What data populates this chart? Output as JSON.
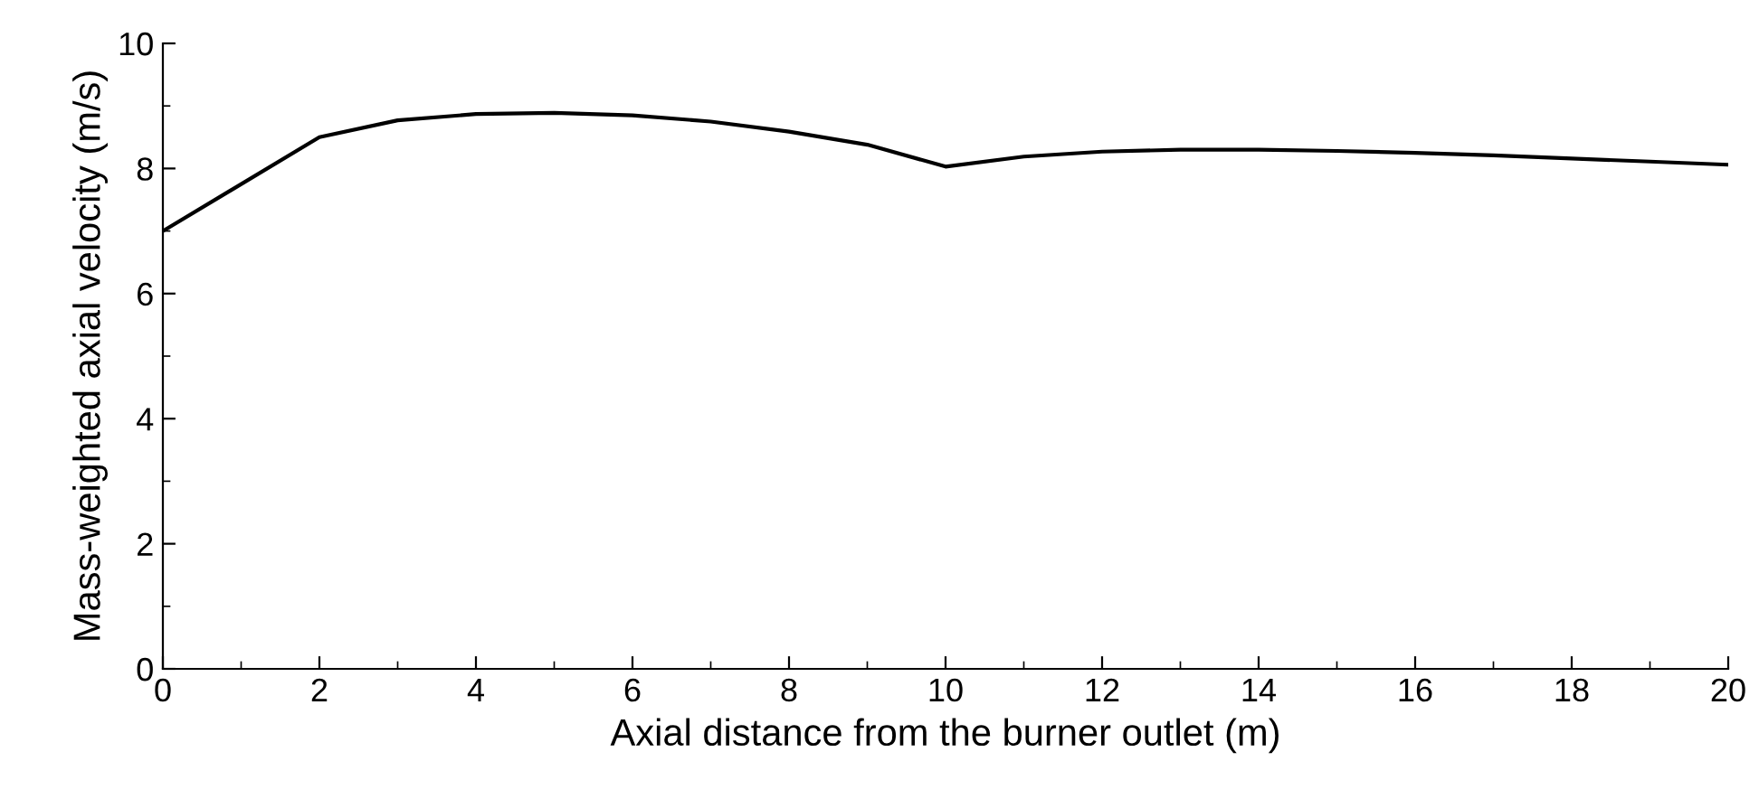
{
  "chart_data": {
    "type": "line",
    "xlabel": "Axial distance from the burner outlet (m)",
    "ylabel": "Mass-weighted axial velocity (m/s)",
    "x": [
      0,
      2,
      3,
      4,
      5,
      6,
      7,
      8,
      9,
      10,
      11,
      12,
      13,
      14,
      15,
      16,
      17,
      18,
      19,
      20
    ],
    "series": [
      {
        "color": "#000000",
        "values": [
          7.0,
          8.5,
          8.77,
          8.87,
          8.89,
          8.85,
          8.75,
          8.59,
          8.38,
          8.03,
          8.19,
          8.27,
          8.3,
          8.3,
          8.28,
          8.25,
          8.21,
          8.16,
          8.11,
          8.06
        ]
      }
    ],
    "xlim": [
      0,
      20
    ],
    "xticks": [
      0,
      2,
      4,
      6,
      8,
      10,
      12,
      14,
      16,
      18,
      20
    ],
    "ylim": [
      0,
      10
    ],
    "yticks": [
      0,
      2,
      4,
      6,
      8,
      10
    ],
    "grid": false,
    "legend": false,
    "marker": "none",
    "line_style": "solid"
  }
}
